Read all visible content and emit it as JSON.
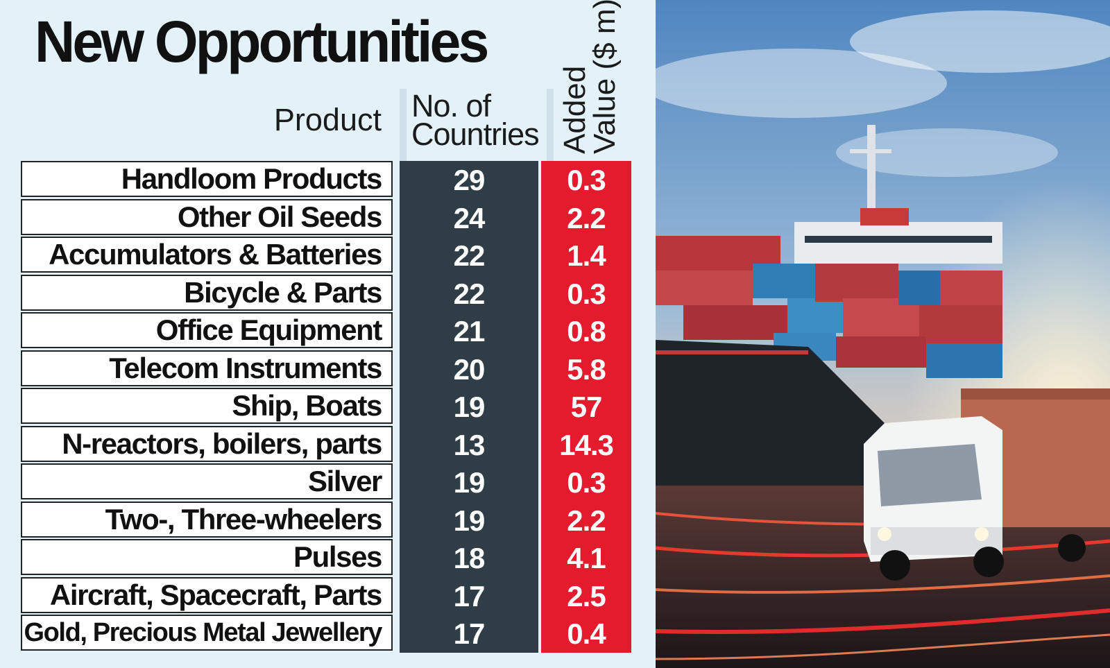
{
  "chart_data": {
    "type": "table",
    "title": "New Opportunities",
    "columns": [
      "Product",
      "No. of Countries",
      "Added Value ($ m)"
    ],
    "header_product": "Product",
    "header_count_lines": [
      "No. of",
      "Countries"
    ],
    "header_value_lines": [
      "Added",
      "Value ($ m)"
    ],
    "rows": [
      {
        "product": "Handloom Products",
        "countries": "29",
        "value": "0.3"
      },
      {
        "product": "Other Oil Seeds",
        "countries": "24",
        "value": "2.2"
      },
      {
        "product": "Accumulators & Batteries",
        "countries": "22",
        "value": "1.4"
      },
      {
        "product": "Bicycle & Parts",
        "countries": "22",
        "value": "0.3"
      },
      {
        "product": "Office Equipment",
        "countries": "21",
        "value": "0.8"
      },
      {
        "product": "Telecom Instruments",
        "countries": "20",
        "value": "5.8"
      },
      {
        "product": "Ship, Boats",
        "countries": "19",
        "value": "57"
      },
      {
        "product": "N-reactors, boilers, parts",
        "countries": "13",
        "value": "14.3"
      },
      {
        "product": "Silver",
        "countries": "19",
        "value": "0.3"
      },
      {
        "product": "Two-, Three-wheelers",
        "countries": "19",
        "value": "2.2"
      },
      {
        "product": "Pulses",
        "countries": "18",
        "value": "4.1"
      },
      {
        "product": "Aircraft, Spacecraft, Parts",
        "countries": "17",
        "value": "2.5"
      },
      {
        "product": "Gold, Precious Metal Jewellery",
        "countries": "17",
        "value": "0.4"
      }
    ]
  },
  "colors": {
    "background": "#e3f1f9",
    "count_column": "#2f3e46",
    "value_column": "#e31b2d",
    "product_cell": "#ffffff"
  },
  "image": {
    "subject": "cargo-ship-and-truck-photo"
  }
}
